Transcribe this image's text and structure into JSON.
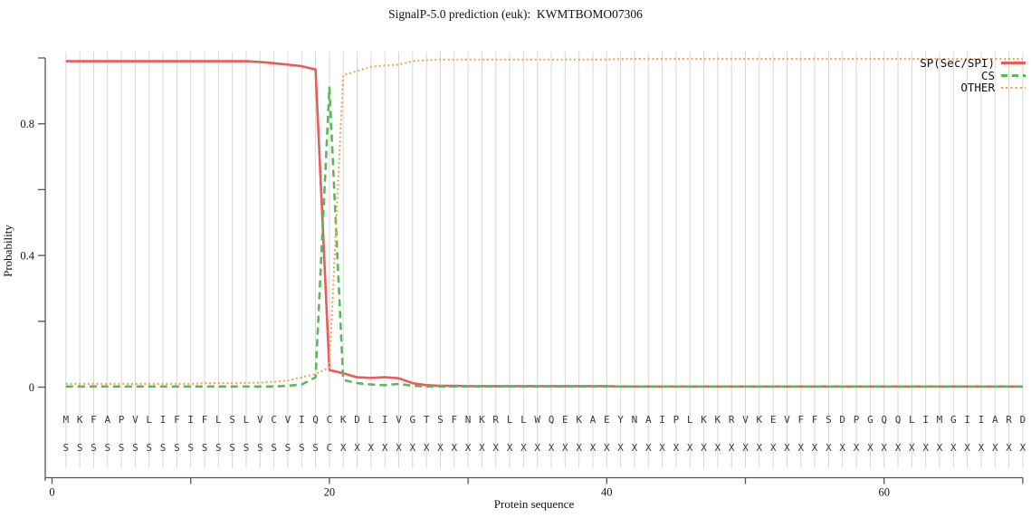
{
  "title": "SignalP-5.0 prediction (euk):  KWMTBOMO07306",
  "chart_data": {
    "type": "line",
    "title": "SignalP-5.0 prediction (euk):  KWMTBOMO07306",
    "xlabel": "Protein sequence",
    "ylabel": "Probability",
    "xlim": [
      0,
      70
    ],
    "ylim": [
      0,
      1.0
    ],
    "x_ticks": [
      0,
      10,
      20,
      30,
      40,
      50,
      60,
      70
    ],
    "x_tick_labels_shown": [
      "0",
      "20",
      "40",
      "60"
    ],
    "y_ticks": [
      0,
      0.2,
      0.4,
      0.6,
      0.8,
      1.0
    ],
    "y_tick_labels_shown": [
      "0",
      "0.4",
      "0.8"
    ],
    "grid": "vertical gridline at each residue position 1-70",
    "legend_position": "top-right",
    "sequence": "MKFAPVLIFIFLSLVCVIQCKDLIVGTSFNKRLLWQEKAEYNAIPLKKRVKEVFFSDPGQQLIMGIIARD",
    "annotation": "SSSSSSSSSSSSSSSSSSSCXXXXXXXXXXXXXXXXXXXXXXXXXXXXXXXXXXXXXXXXXXXXXXXXXX",
    "series": [
      {
        "name": "SP(Sec/SPI)",
        "color": "#e85c5c",
        "style": "solid",
        "values": [
          0.99,
          0.99,
          0.99,
          0.99,
          0.99,
          0.99,
          0.99,
          0.99,
          0.99,
          0.99,
          0.99,
          0.99,
          0.99,
          0.99,
          0.988,
          0.984,
          0.98,
          0.975,
          0.965,
          0.052,
          0.042,
          0.03,
          0.028,
          0.03,
          0.027,
          0.012,
          0.006,
          0.004,
          0.004,
          0.003,
          0.003,
          0.003,
          0.003,
          0.003,
          0.003,
          0.003,
          0.003,
          0.003,
          0.003,
          0.003,
          0.002,
          0.002,
          0.002,
          0.002,
          0.002,
          0.002,
          0.002,
          0.002,
          0.002,
          0.002,
          0.002,
          0.002,
          0.002,
          0.002,
          0.002,
          0.002,
          0.002,
          0.002,
          0.002,
          0.002,
          0.002,
          0.002,
          0.002,
          0.002,
          0.002,
          0.002,
          0.002,
          0.002,
          0.002,
          0.002
        ]
      },
      {
        "name": "CS",
        "color": "#5ab85a",
        "style": "dashed",
        "values": [
          0.002,
          0.002,
          0.002,
          0.002,
          0.002,
          0.002,
          0.002,
          0.002,
          0.002,
          0.002,
          0.002,
          0.002,
          0.002,
          0.002,
          0.002,
          0.002,
          0.004,
          0.008,
          0.03,
          0.91,
          0.022,
          0.012,
          0.008,
          0.006,
          0.01,
          0.004,
          0.002,
          0.002,
          0.002,
          0.002,
          0.002,
          0.002,
          0.002,
          0.002,
          0.002,
          0.002,
          0.002,
          0.002,
          0.002,
          0.002,
          0.002,
          0.002,
          0.002,
          0.002,
          0.002,
          0.002,
          0.002,
          0.002,
          0.002,
          0.002,
          0.002,
          0.002,
          0.002,
          0.002,
          0.002,
          0.002,
          0.002,
          0.002,
          0.002,
          0.002,
          0.002,
          0.002,
          0.002,
          0.002,
          0.002,
          0.002,
          0.002,
          0.002,
          0.002,
          0.002
        ]
      },
      {
        "name": "OTHER",
        "color": "#f0a95c",
        "style": "dotted",
        "values": [
          0.01,
          0.01,
          0.01,
          0.01,
          0.01,
          0.01,
          0.01,
          0.01,
          0.01,
          0.01,
          0.012,
          0.012,
          0.012,
          0.013,
          0.014,
          0.016,
          0.02,
          0.03,
          0.04,
          0.06,
          0.948,
          0.96,
          0.973,
          0.977,
          0.98,
          0.99,
          0.993,
          0.995,
          0.995,
          0.995,
          0.995,
          0.995,
          0.995,
          0.995,
          0.995,
          0.995,
          0.995,
          0.995,
          0.995,
          0.995,
          0.997,
          0.997,
          0.997,
          0.997,
          0.997,
          0.997,
          0.997,
          0.997,
          0.997,
          0.997,
          0.997,
          0.997,
          0.997,
          0.997,
          0.997,
          0.997,
          0.997,
          0.997,
          0.997,
          0.997,
          0.997,
          0.997,
          0.997,
          0.997,
          0.997,
          0.997,
          0.997,
          0.997,
          0.997,
          0.997
        ]
      }
    ]
  },
  "colors": {
    "sp_line": "#e85c5c",
    "cs_line": "#5ab85a",
    "other_line": "#f0a95c",
    "gridline": "#d7d7d7",
    "axis": "#555555",
    "sequence_text": "#3a3a3a"
  }
}
